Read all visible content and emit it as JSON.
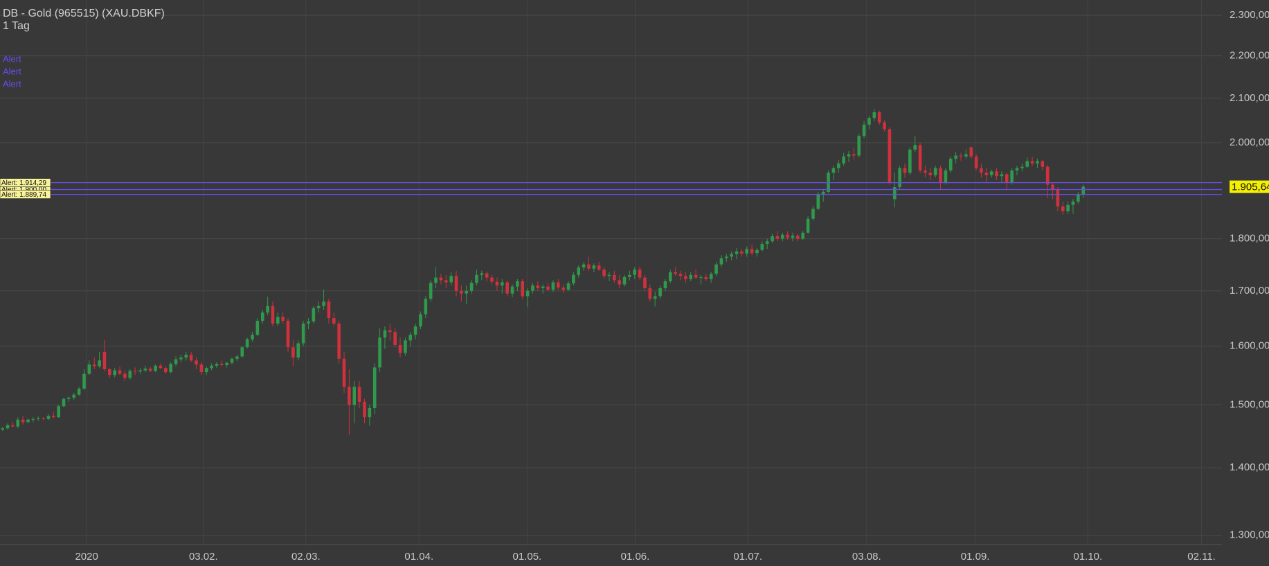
{
  "chart_data": {
    "type": "candlestick",
    "title": "DB - Gold (965515) (XAU.DBKF)",
    "subtitle": "1 Tag",
    "log_scale": true,
    "grid": true,
    "up_color": "#2f9a4c",
    "down_color": "#d0313c",
    "ylim": [
      1287,
      2339
    ],
    "yticks": [
      {
        "value": 1300,
        "label": "1.300,00"
      },
      {
        "value": 1400,
        "label": "1.400,00"
      },
      {
        "value": 1500,
        "label": "1.500,00"
      },
      {
        "value": 1600,
        "label": "1.600,00"
      },
      {
        "value": 1700,
        "label": "1.700,00"
      },
      {
        "value": 1800,
        "label": "1.800,00"
      },
      {
        "value": 2000,
        "label": "2.000,00"
      },
      {
        "value": 2100,
        "label": "2.100,00"
      },
      {
        "value": 2200,
        "label": "2.200,00"
      },
      {
        "value": 2300,
        "label": "2.300,00"
      }
    ],
    "xlim": [
      -0.5,
      239.2
    ],
    "xticks": [
      {
        "value": 16.5,
        "label": "2020"
      },
      {
        "value": 39.4,
        "label": "03.02."
      },
      {
        "value": 59.5,
        "label": "02.03."
      },
      {
        "value": 81.7,
        "label": "01.04."
      },
      {
        "value": 102.9,
        "label": "01.05."
      },
      {
        "value": 124.1,
        "label": "01.06."
      },
      {
        "value": 146.2,
        "label": "01.07."
      },
      {
        "value": 169.5,
        "label": "03.08."
      },
      {
        "value": 190.8,
        "label": "01.09."
      },
      {
        "value": 212.9,
        "label": "01.10."
      },
      {
        "value": 235.2,
        "label": "02.11."
      }
    ],
    "alerts": [
      {
        "name": "Alert",
        "value": 1914.29,
        "label": "Alert: 1.914,29",
        "color": "#6a4cf0"
      },
      {
        "name": "Alert",
        "value": 1900,
        "label": "Alert: 1.900,00",
        "color": "#6a4cf0"
      },
      {
        "name": "Alert",
        "value": 1889.74,
        "label": "Alert: 1.889,74",
        "color": "#6a4cf0"
      }
    ],
    "last_price": {
      "value": 1905.64,
      "label": "1.905,64"
    },
    "candles": [
      [
        1460,
        1464,
        1458,
        1462
      ],
      [
        1462,
        1470,
        1460,
        1467
      ],
      [
        1467,
        1472,
        1463,
        1465
      ],
      [
        1465,
        1480,
        1462,
        1476
      ],
      [
        1476,
        1482,
        1468,
        1472
      ],
      [
        1472,
        1478,
        1470,
        1476
      ],
      [
        1476,
        1480,
        1472,
        1477
      ],
      [
        1477,
        1481,
        1474,
        1478
      ],
      [
        1478,
        1480,
        1475,
        1477
      ],
      [
        1477,
        1485,
        1475,
        1482
      ],
      [
        1482,
        1488,
        1478,
        1480
      ],
      [
        1480,
        1500,
        1479,
        1498
      ],
      [
        1498,
        1512,
        1496,
        1510
      ],
      [
        1510,
        1514,
        1505,
        1512
      ],
      [
        1512,
        1520,
        1508,
        1517
      ],
      [
        1517,
        1530,
        1515,
        1527
      ],
      [
        1527,
        1560,
        1525,
        1552
      ],
      [
        1552,
        1575,
        1550,
        1568
      ],
      [
        1568,
        1580,
        1560,
        1565
      ],
      [
        1565,
        1590,
        1562,
        1575
      ],
      [
        1590,
        1611,
        1556,
        1560
      ],
      [
        1560,
        1562,
        1545,
        1550
      ],
      [
        1550,
        1562,
        1546,
        1558
      ],
      [
        1558,
        1565,
        1550,
        1552
      ],
      [
        1552,
        1558,
        1540,
        1545
      ],
      [
        1545,
        1560,
        1542,
        1557
      ],
      [
        1557,
        1563,
        1550,
        1556
      ],
      [
        1556,
        1562,
        1552,
        1558
      ],
      [
        1558,
        1566,
        1555,
        1561
      ],
      [
        1561,
        1564,
        1555,
        1557
      ],
      [
        1557,
        1568,
        1555,
        1566
      ],
      [
        1566,
        1570,
        1560,
        1562
      ],
      [
        1562,
        1565,
        1552,
        1555
      ],
      [
        1555,
        1572,
        1553,
        1569
      ],
      [
        1569,
        1582,
        1565,
        1577
      ],
      [
        1577,
        1585,
        1572,
        1580
      ],
      [
        1580,
        1590,
        1575,
        1585
      ],
      [
        1585,
        1590,
        1572,
        1575
      ],
      [
        1575,
        1580,
        1560,
        1568
      ],
      [
        1568,
        1572,
        1550,
        1555
      ],
      [
        1555,
        1565,
        1550,
        1562
      ],
      [
        1562,
        1570,
        1558,
        1566
      ],
      [
        1566,
        1572,
        1562,
        1569
      ],
      [
        1569,
        1575,
        1564,
        1567
      ],
      [
        1567,
        1573,
        1563,
        1571
      ],
      [
        1571,
        1580,
        1568,
        1578
      ],
      [
        1578,
        1585,
        1574,
        1582
      ],
      [
        1582,
        1600,
        1580,
        1598
      ],
      [
        1598,
        1615,
        1596,
        1612
      ],
      [
        1612,
        1625,
        1608,
        1620
      ],
      [
        1620,
        1650,
        1618,
        1645
      ],
      [
        1645,
        1665,
        1640,
        1660
      ],
      [
        1660,
        1689,
        1655,
        1672
      ],
      [
        1672,
        1680,
        1635,
        1640
      ],
      [
        1640,
        1660,
        1635,
        1652
      ],
      [
        1652,
        1660,
        1640,
        1645
      ],
      [
        1645,
        1650,
        1590,
        1598
      ],
      [
        1598,
        1610,
        1565,
        1580
      ],
      [
        1580,
        1610,
        1575,
        1605
      ],
      [
        1605,
        1645,
        1600,
        1640
      ],
      [
        1640,
        1650,
        1630,
        1644
      ],
      [
        1644,
        1672,
        1640,
        1668
      ],
      [
        1668,
        1680,
        1660,
        1672
      ],
      [
        1672,
        1703,
        1665,
        1680
      ],
      [
        1680,
        1685,
        1640,
        1650
      ],
      [
        1650,
        1660,
        1635,
        1640
      ],
      [
        1640,
        1645,
        1570,
        1578
      ],
      [
        1578,
        1590,
        1520,
        1530
      ],
      [
        1530,
        1560,
        1451,
        1500
      ],
      [
        1500,
        1540,
        1470,
        1530
      ],
      [
        1530,
        1540,
        1495,
        1505
      ],
      [
        1505,
        1510,
        1470,
        1480
      ],
      [
        1480,
        1500,
        1466,
        1495
      ],
      [
        1495,
        1570,
        1485,
        1563
      ],
      [
        1563,
        1632,
        1555,
        1615
      ],
      [
        1615,
        1635,
        1595,
        1628
      ],
      [
        1628,
        1640,
        1610,
        1625
      ],
      [
        1625,
        1632,
        1598,
        1602
      ],
      [
        1602,
        1615,
        1580,
        1588
      ],
      [
        1588,
        1615,
        1583,
        1610
      ],
      [
        1610,
        1625,
        1600,
        1620
      ],
      [
        1620,
        1640,
        1612,
        1635
      ],
      [
        1635,
        1662,
        1630,
        1657
      ],
      [
        1657,
        1690,
        1650,
        1685
      ],
      [
        1685,
        1720,
        1680,
        1715
      ],
      [
        1715,
        1745,
        1705,
        1725
      ],
      [
        1725,
        1732,
        1712,
        1720
      ],
      [
        1720,
        1730,
        1705,
        1716
      ],
      [
        1716,
        1735,
        1710,
        1728
      ],
      [
        1728,
        1738,
        1690,
        1700
      ],
      [
        1700,
        1710,
        1680,
        1695
      ],
      [
        1695,
        1710,
        1675,
        1700
      ],
      [
        1700,
        1720,
        1695,
        1715
      ],
      [
        1715,
        1740,
        1710,
        1730
      ],
      [
        1730,
        1738,
        1720,
        1733
      ],
      [
        1733,
        1736,
        1718,
        1725
      ],
      [
        1725,
        1730,
        1712,
        1717
      ],
      [
        1717,
        1725,
        1700,
        1710
      ],
      [
        1710,
        1722,
        1695,
        1716
      ],
      [
        1716,
        1720,
        1690,
        1695
      ],
      [
        1695,
        1712,
        1688,
        1708
      ],
      [
        1708,
        1722,
        1700,
        1718
      ],
      [
        1718,
        1722,
        1685,
        1690
      ],
      [
        1690,
        1705,
        1670,
        1700
      ],
      [
        1700,
        1715,
        1695,
        1710
      ],
      [
        1710,
        1718,
        1700,
        1705
      ],
      [
        1705,
        1712,
        1695,
        1708
      ],
      [
        1708,
        1715,
        1700,
        1702
      ],
      [
        1702,
        1720,
        1698,
        1716
      ],
      [
        1716,
        1722,
        1702,
        1706
      ],
      [
        1706,
        1712,
        1696,
        1702
      ],
      [
        1702,
        1718,
        1700,
        1714
      ],
      [
        1714,
        1735,
        1710,
        1730
      ],
      [
        1730,
        1748,
        1725,
        1744
      ],
      [
        1744,
        1755,
        1738,
        1750
      ],
      [
        1750,
        1765,
        1738,
        1742
      ],
      [
        1742,
        1752,
        1735,
        1748
      ],
      [
        1748,
        1755,
        1738,
        1740
      ],
      [
        1740,
        1745,
        1722,
        1728
      ],
      [
        1728,
        1735,
        1718,
        1730
      ],
      [
        1730,
        1738,
        1715,
        1720
      ],
      [
        1720,
        1730,
        1705,
        1712
      ],
      [
        1712,
        1730,
        1708,
        1726
      ],
      [
        1726,
        1738,
        1720,
        1730
      ],
      [
        1730,
        1745,
        1722,
        1740
      ],
      [
        1740,
        1745,
        1720,
        1725
      ],
      [
        1725,
        1730,
        1700,
        1705
      ],
      [
        1705,
        1712,
        1680,
        1685
      ],
      [
        1685,
        1698,
        1671,
        1690
      ],
      [
        1690,
        1710,
        1685,
        1705
      ],
      [
        1705,
        1722,
        1700,
        1718
      ],
      [
        1718,
        1740,
        1715,
        1735
      ],
      [
        1735,
        1745,
        1728,
        1732
      ],
      [
        1732,
        1738,
        1720,
        1728
      ],
      [
        1728,
        1735,
        1715,
        1722
      ],
      [
        1722,
        1735,
        1718,
        1730
      ],
      [
        1730,
        1740,
        1722,
        1725
      ],
      [
        1725,
        1730,
        1712,
        1726
      ],
      [
        1726,
        1732,
        1718,
        1722
      ],
      [
        1722,
        1735,
        1715,
        1732
      ],
      [
        1732,
        1755,
        1728,
        1750
      ],
      [
        1750,
        1768,
        1745,
        1762
      ],
      [
        1762,
        1770,
        1755,
        1765
      ],
      [
        1765,
        1775,
        1758,
        1770
      ],
      [
        1770,
        1782,
        1760,
        1775
      ],
      [
        1775,
        1780,
        1765,
        1771
      ],
      [
        1771,
        1785,
        1765,
        1780
      ],
      [
        1780,
        1788,
        1768,
        1772
      ],
      [
        1772,
        1782,
        1765,
        1778
      ],
      [
        1778,
        1795,
        1775,
        1790
      ],
      [
        1790,
        1800,
        1780,
        1795
      ],
      [
        1795,
        1810,
        1792,
        1805
      ],
      [
        1805,
        1815,
        1795,
        1800
      ],
      [
        1800,
        1812,
        1795,
        1808
      ],
      [
        1808,
        1815,
        1798,
        1802
      ],
      [
        1802,
        1812,
        1795,
        1806
      ],
      [
        1806,
        1810,
        1795,
        1800
      ],
      [
        1800,
        1815,
        1798,
        1812
      ],
      [
        1812,
        1845,
        1810,
        1840
      ],
      [
        1840,
        1866,
        1836,
        1860
      ],
      [
        1860,
        1895,
        1858,
        1890
      ],
      [
        1890,
        1900,
        1875,
        1895
      ],
      [
        1895,
        1940,
        1893,
        1935
      ],
      [
        1935,
        1950,
        1920,
        1945
      ],
      [
        1945,
        1962,
        1935,
        1955
      ],
      [
        1955,
        1978,
        1950,
        1970
      ],
      [
        1970,
        1982,
        1958,
        1975
      ],
      [
        1975,
        1990,
        1962,
        1972
      ],
      [
        1972,
        2020,
        1968,
        2015
      ],
      [
        2015,
        2048,
        2010,
        2040
      ],
      [
        2040,
        2060,
        2030,
        2055
      ],
      [
        2055,
        2075,
        2048,
        2068
      ],
      [
        2068,
        2072,
        2040,
        2045
      ],
      [
        2045,
        2050,
        2025,
        2030
      ],
      [
        2030,
        2035,
        1910,
        1915
      ],
      [
        1880,
        1935,
        1863,
        1905
      ],
      [
        1905,
        1950,
        1900,
        1945
      ],
      [
        1945,
        1955,
        1925,
        1935
      ],
      [
        1935,
        1990,
        1930,
        1985
      ],
      [
        1985,
        2015,
        1980,
        1995
      ],
      [
        1995,
        2000,
        1935,
        1940
      ],
      [
        1940,
        1950,
        1925,
        1935
      ],
      [
        1935,
        1945,
        1920,
        1930
      ],
      [
        1930,
        1950,
        1925,
        1945
      ],
      [
        1945,
        1950,
        1900,
        1915
      ],
      [
        1915,
        1945,
        1910,
        1940
      ],
      [
        1940,
        1970,
        1935,
        1965
      ],
      [
        1965,
        1980,
        1955,
        1972
      ],
      [
        1972,
        1978,
        1960,
        1970
      ],
      [
        1970,
        1985,
        1965,
        1975
      ],
      [
        1990,
        1992,
        1965,
        1970
      ],
      [
        1970,
        1975,
        1940,
        1945
      ],
      [
        1945,
        1955,
        1925,
        1935
      ],
      [
        1935,
        1945,
        1915,
        1930
      ],
      [
        1930,
        1942,
        1925,
        1938
      ],
      [
        1938,
        1945,
        1920,
        1928
      ],
      [
        1928,
        1938,
        1915,
        1932
      ],
      [
        1932,
        1935,
        1900,
        1915
      ],
      [
        1915,
        1945,
        1910,
        1940
      ],
      [
        1940,
        1950,
        1930,
        1945
      ],
      [
        1945,
        1955,
        1938,
        1948
      ],
      [
        1948,
        1968,
        1945,
        1960
      ],
      [
        1960,
        1970,
        1950,
        1955
      ],
      [
        1955,
        1965,
        1945,
        1960
      ],
      [
        1960,
        1962,
        1940,
        1948
      ],
      [
        1948,
        1952,
        1882,
        1910
      ],
      [
        1910,
        1915,
        1880,
        1900
      ],
      [
        1900,
        1905,
        1855,
        1865
      ],
      [
        1865,
        1875,
        1848,
        1855
      ],
      [
        1855,
        1875,
        1850,
        1868
      ],
      [
        1868,
        1880,
        1850,
        1875
      ],
      [
        1875,
        1895,
        1870,
        1890
      ],
      [
        1890,
        1910,
        1882,
        1906
      ]
    ]
  }
}
